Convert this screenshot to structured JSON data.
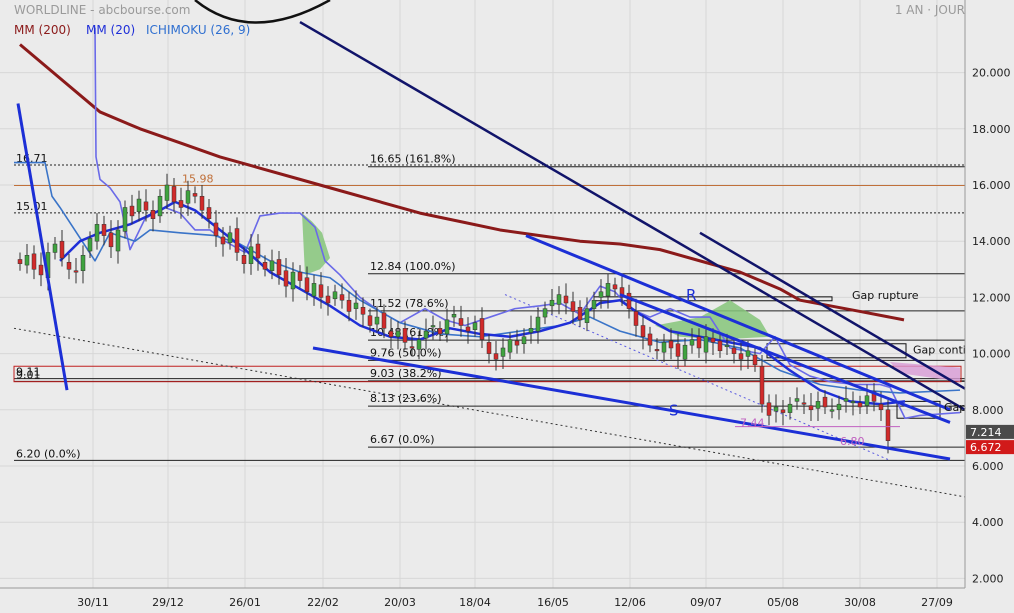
{
  "header": {
    "symbol": "WORLDLINE - abcbourse.com",
    "period": "1 AN · JOUR"
  },
  "legend": [
    {
      "label": "MM (200)",
      "color": "#8b1a1a"
    },
    {
      "label": "MM (20)",
      "color": "#1f2fd8"
    },
    {
      "label": "ICHIMOKU (26, 9)",
      "color": "#2f6fd0"
    }
  ],
  "colors": {
    "background": "#ebebeb",
    "up_candle": "#3fa33f",
    "down_candle": "#d12b2b",
    "mm200": "#8b1a1a",
    "mm20": "#1f2fd8",
    "ichimoku": "#6a6ae8",
    "trend": "#1c2fd6",
    "dark_trend": "#11146a",
    "cloud_green": "#86c57a",
    "cloud_pink": "#d89bd6",
    "orange_level": "#c0703a"
  },
  "chart_data": {
    "type": "candlestick",
    "y_axis": {
      "ticks": [
        "2.000",
        "4.000",
        "6.000",
        "8.000",
        "10.000",
        "12.000",
        "14.000",
        "16.000",
        "18.000",
        "20.000"
      ],
      "ylim": [
        1.2,
        21.6
      ]
    },
    "x_axis": {
      "ticks": [
        "30/11",
        "29/12",
        "26/01",
        "22/02",
        "20/03",
        "18/04",
        "16/05",
        "12/06",
        "09/07",
        "05/08",
        "30/08",
        "27/09"
      ]
    },
    "price_tags": [
      {
        "label": "7.214",
        "value": 7.214,
        "color": "#4a4a4a"
      },
      {
        "label": "6.672",
        "value": 6.672,
        "color": "#d11a1a"
      }
    ],
    "fib_levels": [
      {
        "label": "16.65  (161.8%)",
        "value": 16.65
      },
      {
        "label": "12.84  (100.0%)",
        "value": 12.84
      },
      {
        "label": "11.52  (78.6%)",
        "value": 11.52
      },
      {
        "label": "10.48  (61.8%)",
        "value": 10.48
      },
      {
        "label": "9.76  (50.0%)",
        "value": 9.76
      },
      {
        "label": "9.03  (38.2%)",
        "value": 9.03
      },
      {
        "label": "8.13  (23.6%)",
        "value": 8.13
      },
      {
        "label": "6.67  (0.0%)",
        "value": 6.67
      }
    ],
    "left_levels": [
      {
        "label": "16.71",
        "value": 16.71
      },
      {
        "label": "15.01",
        "value": 15.01
      },
      {
        "label": "9.11",
        "value": 9.11
      },
      {
        "label": "9.01",
        "value": 9.01
      },
      {
        "label": "6.20  (0.0%)",
        "value": 6.2
      }
    ],
    "orange_level": {
      "label": "15.98",
      "value": 15.98
    },
    "annotations": [
      {
        "label": "R",
        "x": 686,
        "value": 11.9,
        "color": "#1c2fd6"
      },
      {
        "label": "S",
        "x": 669,
        "value": 7.8,
        "color": "#1c2fd6"
      },
      {
        "label": "7.44",
        "x": 740,
        "value": 7.4,
        "color": "#c060c0"
      },
      {
        "label": "6.80",
        "x": 840,
        "value": 6.75,
        "color": "#c060c0"
      },
      {
        "label": "Gap rupture",
        "x": 852,
        "value": 11.95,
        "color": "#111111"
      },
      {
        "label": "Gap conti",
        "x": 913,
        "value": 10.0,
        "color": "#111111"
      },
      {
        "label": "Gap",
        "x": 944,
        "value": 7.95,
        "color": "#111111"
      }
    ],
    "gap_boxes": [
      {
        "x0": 594,
        "x1": 832,
        "low": 11.88,
        "high": 12.02
      },
      {
        "x0": 767,
        "x1": 906,
        "low": 9.85,
        "high": 10.35
      },
      {
        "x0": 897,
        "x1": 940,
        "low": 7.7,
        "high": 8.3
      }
    ],
    "trend_lines": [
      {
        "name": "",
        "points": [
          [
            313,
            10.2
          ],
          [
            950,
            6.25
          ]
        ],
        "color": "#1c2fd6",
        "width": 3
      },
      {
        "name": "",
        "points": [
          [
            526,
            14.2
          ],
          [
            950,
            8.0
          ]
        ],
        "color": "#1c2fd6",
        "width": 3
      },
      {
        "name": "",
        "points": [
          [
            18,
            18.9
          ],
          [
            67,
            8.7
          ]
        ],
        "color": "#1c2fd6",
        "width": 3
      },
      {
        "name": "",
        "points": [
          [
            620,
            12.1
          ],
          [
            950,
            7.55
          ]
        ],
        "color": "#1c2fd6",
        "width": 3
      },
      {
        "name": "",
        "points": [
          [
            300,
            21.8
          ],
          [
            965,
            8.0
          ]
        ],
        "color": "#11146a",
        "width": 2.5
      },
      {
        "name": "",
        "points": [
          [
            700,
            14.3
          ],
          [
            965,
            8.75
          ]
        ],
        "color": "#11146a",
        "width": 2.5
      }
    ],
    "candles_close": [
      13.2,
      13.5,
      13.0,
      12.8,
      13.6,
      13.9,
      13.4,
      13.0,
      12.9,
      13.5,
      14.1,
      14.6,
      14.2,
      13.8,
      14.4,
      15.2,
      14.9,
      15.5,
      15.1,
      14.8,
      15.6,
      16.0,
      15.4,
      15.2,
      15.8,
      15.6,
      15.1,
      14.8,
      14.2,
      13.9,
      14.3,
      13.6,
      13.2,
      13.8,
      13.4,
      13.0,
      13.3,
      12.8,
      12.4,
      12.9,
      12.6,
      12.2,
      12.5,
      12.0,
      11.8,
      12.2,
      11.9,
      11.5,
      11.8,
      11.4,
      11.0,
      11.3,
      10.9,
      10.6,
      10.8,
      10.4,
      10.2,
      10.5,
      10.8,
      11.0,
      10.7,
      11.2,
      11.4,
      11.0,
      10.8,
      11.1,
      10.5,
      10.0,
      9.8,
      10.2,
      10.5,
      10.3,
      10.6,
      10.9,
      11.3,
      11.6,
      11.9,
      12.1,
      11.8,
      11.5,
      11.2,
      11.6,
      11.9,
      12.2,
      12.5,
      12.3,
      12.0,
      11.6,
      11.0,
      10.6,
      10.3,
      10.1,
      10.4,
      10.2,
      9.9,
      10.3,
      10.5,
      10.2,
      10.6,
      10.4,
      10.1,
      10.3,
      10.0,
      9.8,
      10.1,
      9.6,
      8.2,
      7.8,
      8.1,
      7.9,
      8.2,
      8.4,
      8.2,
      8.0,
      8.3,
      8.1,
      8.0,
      8.2,
      8.4,
      8.3,
      8.1,
      8.5,
      8.3,
      8.0,
      6.9
    ]
  }
}
